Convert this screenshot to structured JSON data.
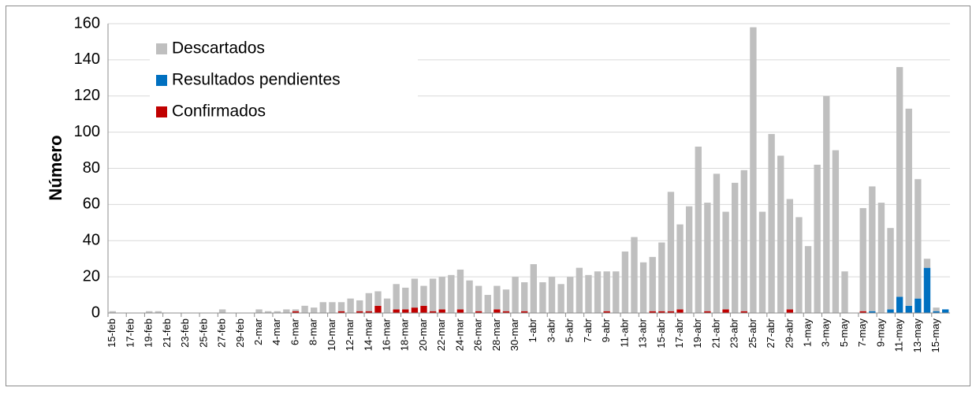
{
  "chart_data": {
    "type": "stacked_bar",
    "ylabel": "Número",
    "ylim": [
      0,
      160
    ],
    "yticks": [
      0,
      20,
      40,
      60,
      80,
      100,
      120,
      140,
      160
    ],
    "grid": true,
    "legend": "top-left",
    "categories": [
      "15-feb",
      null,
      "17-feb",
      null,
      "19-feb",
      null,
      "21-feb",
      null,
      "23-feb",
      null,
      "25-feb",
      null,
      "27-feb",
      null,
      "29-feb",
      null,
      "2-mar",
      null,
      "4-mar",
      null,
      "6-mar",
      null,
      "8-mar",
      null,
      "10-mar",
      null,
      "12-mar",
      null,
      "14-mar",
      null,
      "16-mar",
      null,
      "18-mar",
      null,
      "20-mar",
      null,
      "22-mar",
      null,
      "24-mar",
      null,
      "26-mar",
      null,
      "28-mar",
      null,
      "30-mar",
      null,
      "1-abr",
      null,
      "3-abr",
      null,
      "5-abr",
      null,
      "7-abr",
      null,
      "9-abr",
      null,
      "11-abr",
      null,
      "13-abr",
      null,
      "15-abr",
      null,
      "17-abr",
      null,
      "19-abr",
      null,
      "21-abr",
      null,
      "23-abr",
      null,
      "25-abr",
      null,
      "27-abr",
      null,
      "29-abr",
      null,
      "1-may",
      null,
      "3-may",
      null,
      "5-may",
      null,
      "7-may",
      null,
      "9-may",
      null,
      "11-may",
      null,
      "13-may",
      null,
      "15-may",
      null
    ],
    "series": [
      {
        "name": "Descartados",
        "color": "#bfbfbf",
        "values": [
          1,
          0,
          0,
          0,
          1,
          1,
          0,
          0,
          0,
          0,
          0,
          0,
          2,
          0,
          0,
          0,
          2,
          1,
          1,
          2,
          1,
          4,
          3,
          6,
          6,
          5,
          8,
          6,
          10,
          8,
          8,
          14,
          12,
          16,
          11,
          18,
          18,
          21,
          22,
          18,
          14,
          10,
          13,
          12,
          20,
          16,
          27,
          17,
          20,
          16,
          20,
          25,
          21,
          23,
          22,
          23,
          34,
          42,
          28,
          30,
          38,
          66,
          47,
          59,
          92,
          60,
          77,
          54,
          72,
          78,
          158,
          56,
          99,
          87,
          61,
          53,
          37,
          82,
          120,
          90,
          23,
          0,
          57,
          69,
          61,
          45,
          127,
          109,
          66,
          5,
          2,
          0
        ]
      },
      {
        "name": "Resultados pendientes",
        "color": "#0070c0",
        "values": [
          0,
          0,
          0,
          0,
          0,
          0,
          0,
          0,
          0,
          0,
          0,
          0,
          0,
          0,
          0,
          0,
          0,
          0,
          0,
          0,
          0,
          0,
          0,
          0,
          0,
          0,
          0,
          0,
          0,
          0,
          0,
          0,
          0,
          0,
          0,
          0,
          0,
          0,
          0,
          0,
          0,
          0,
          0,
          0,
          0,
          0,
          0,
          0,
          0,
          0,
          0,
          0,
          0,
          0,
          0,
          0,
          0,
          0,
          0,
          0,
          0,
          0,
          0,
          0,
          0,
          0,
          0,
          0,
          0,
          0,
          0,
          0,
          0,
          0,
          0,
          0,
          0,
          0,
          0,
          0,
          0,
          0,
          0,
          1,
          0,
          2,
          9,
          4,
          8,
          25,
          1,
          2
        ]
      },
      {
        "name": "Confirmados",
        "color": "#c00000",
        "values": [
          0,
          0,
          0,
          0,
          0,
          0,
          0,
          0,
          0,
          0,
          0,
          0,
          0,
          0,
          0,
          0,
          0,
          0,
          0,
          0,
          1,
          0,
          0,
          0,
          0,
          1,
          0,
          1,
          1,
          4,
          0,
          2,
          2,
          3,
          4,
          1,
          2,
          0,
          2,
          0,
          1,
          0,
          2,
          1,
          0,
          1,
          0,
          0,
          0,
          0,
          0,
          0,
          0,
          0,
          1,
          0,
          0,
          0,
          0,
          1,
          1,
          1,
          2,
          0,
          0,
          1,
          0,
          2,
          0,
          1,
          0,
          0,
          0,
          0,
          2,
          0,
          0,
          0,
          0,
          0,
          0,
          0,
          1,
          0,
          0,
          0,
          0,
          0,
          0,
          0,
          0,
          0
        ]
      }
    ]
  }
}
